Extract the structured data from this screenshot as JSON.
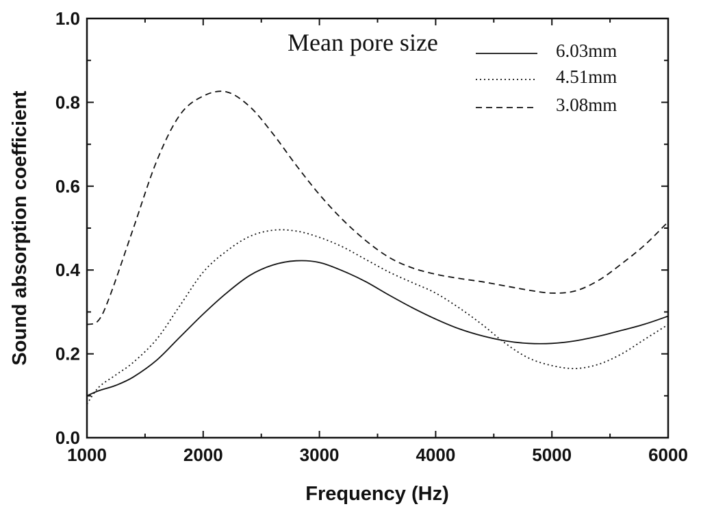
{
  "chart_data": {
    "type": "line",
    "title": "",
    "xlabel": "Frequency (Hz)",
    "ylabel": "Sound absorption coefficient",
    "xlim": [
      1000,
      6000
    ],
    "ylim": [
      0.0,
      1.0
    ],
    "xticks": [
      1000,
      2000,
      3000,
      4000,
      5000,
      6000
    ],
    "xtick_labels": [
      "1000",
      "2000",
      "3000",
      "4000",
      "5000",
      "6000"
    ],
    "yticks": [
      0.0,
      0.2,
      0.4,
      0.6,
      0.8,
      1.0
    ],
    "ytick_labels": [
      "0.0",
      "0.2",
      "0.4",
      "0.6",
      "0.8",
      "1.0"
    ],
    "grid": false,
    "legend": {
      "title": "Mean pore size",
      "placement": "top-right"
    },
    "series": [
      {
        "name": "6.03mm",
        "style": "solid",
        "color": "#111111",
        "x": [
          1000,
          1100,
          1250,
          1400,
          1600,
          1800,
          2000,
          2200,
          2400,
          2600,
          2800,
          3000,
          3200,
          3400,
          3600,
          3800,
          4000,
          4200,
          4400,
          4600,
          4800,
          5000,
          5200,
          5400,
          5600,
          5800,
          6000
        ],
        "y": [
          0.1,
          0.112,
          0.125,
          0.145,
          0.185,
          0.24,
          0.295,
          0.345,
          0.387,
          0.412,
          0.422,
          0.418,
          0.398,
          0.372,
          0.34,
          0.31,
          0.283,
          0.26,
          0.243,
          0.231,
          0.225,
          0.225,
          0.231,
          0.242,
          0.256,
          0.271,
          0.29
        ]
      },
      {
        "name": "4.51mm",
        "style": "dotted",
        "color": "#111111",
        "x": [
          1000,
          1100,
          1250,
          1400,
          1600,
          1800,
          2000,
          2200,
          2400,
          2600,
          2800,
          3000,
          3200,
          3400,
          3600,
          3800,
          4000,
          4200,
          4400,
          4600,
          4800,
          5000,
          5200,
          5400,
          5600,
          5800,
          6000
        ],
        "y": [
          0.08,
          0.12,
          0.15,
          0.18,
          0.235,
          0.315,
          0.395,
          0.445,
          0.48,
          0.495,
          0.493,
          0.478,
          0.455,
          0.425,
          0.395,
          0.37,
          0.345,
          0.31,
          0.27,
          0.225,
          0.19,
          0.172,
          0.165,
          0.175,
          0.2,
          0.235,
          0.27
        ]
      },
      {
        "name": "3.08mm",
        "style": "dashed",
        "color": "#111111",
        "x": [
          1000,
          1100,
          1200,
          1400,
          1600,
          1800,
          2000,
          2200,
          2400,
          2600,
          2800,
          3000,
          3200,
          3400,
          3600,
          3800,
          4000,
          4200,
          4400,
          4600,
          4800,
          5000,
          5200,
          5400,
          5600,
          5800,
          6000
        ],
        "y": [
          0.27,
          0.28,
          0.34,
          0.5,
          0.66,
          0.77,
          0.815,
          0.825,
          0.79,
          0.725,
          0.65,
          0.58,
          0.52,
          0.47,
          0.43,
          0.405,
          0.39,
          0.38,
          0.372,
          0.362,
          0.352,
          0.345,
          0.35,
          0.375,
          0.415,
          0.46,
          0.515
        ]
      }
    ]
  }
}
